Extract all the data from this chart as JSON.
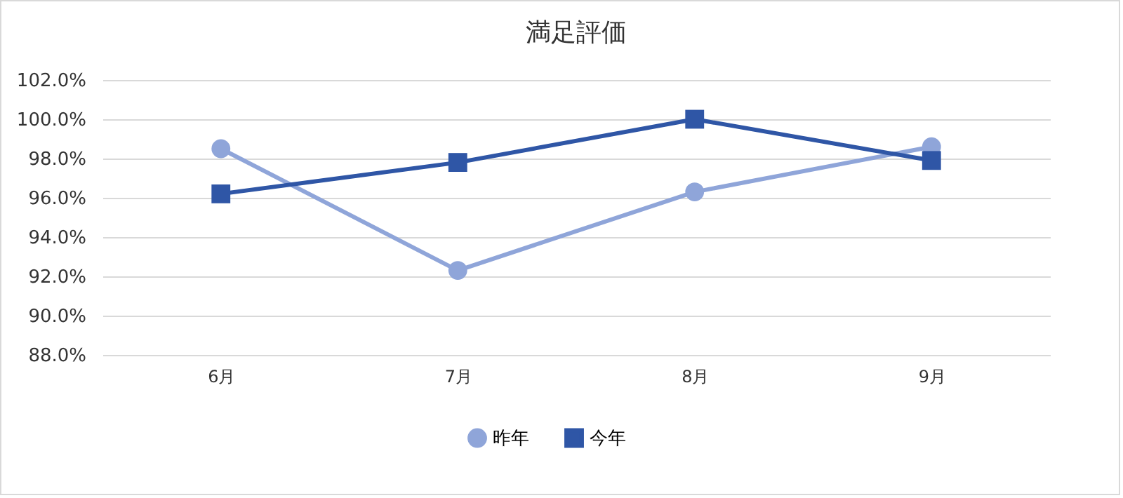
{
  "chart_data": {
    "type": "line",
    "title": "満足評価",
    "categories": [
      "6月",
      "7月",
      "8月",
      "9月"
    ],
    "series": [
      {
        "name": "昨年",
        "color": "#8fa5d9",
        "marker": "circle",
        "values": [
          98.5,
          92.3,
          96.3,
          98.6
        ]
      },
      {
        "name": "今年",
        "color": "#2f56a6",
        "marker": "square",
        "values": [
          96.2,
          97.8,
          100.0,
          97.9
        ]
      }
    ],
    "ylim": [
      88,
      102
    ],
    "yticks": [
      {
        "value": 88,
        "label": "88.0%"
      },
      {
        "value": 90,
        "label": "90.0%"
      },
      {
        "value": 92,
        "label": "92.0%"
      },
      {
        "value": 94,
        "label": "94.0%"
      },
      {
        "value": 96,
        "label": "96.0%"
      },
      {
        "value": 98,
        "label": "98.0%"
      },
      {
        "value": 100,
        "label": "100.0%"
      },
      {
        "value": 102,
        "label": "102.0%"
      }
    ],
    "grid": "y",
    "legend": "bottom"
  }
}
